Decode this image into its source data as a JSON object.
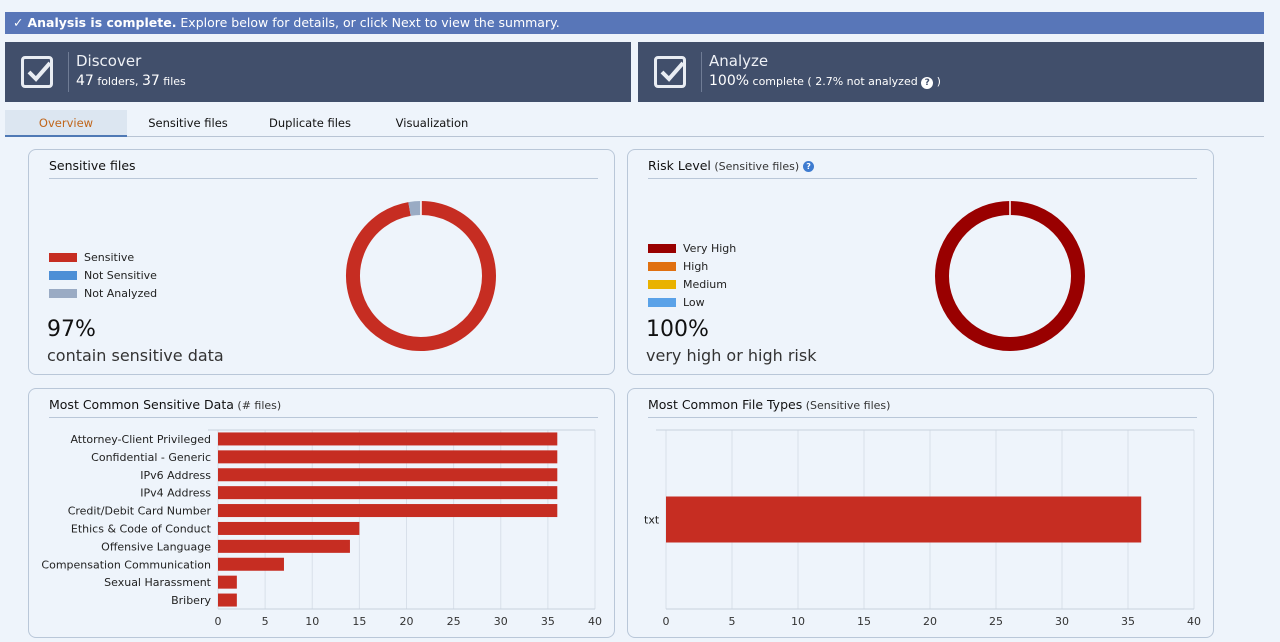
{
  "banner": {
    "check": "✓",
    "bold": "Analysis is complete.",
    "text": " Explore below for details, or click Next to view the summary."
  },
  "discover": {
    "title": "Discover",
    "folders": "47",
    "folders_label": " folders, ",
    "files": "37",
    "files_label": " files"
  },
  "analyze": {
    "title": "Analyze",
    "percent": "100%",
    "complete_label": " complete ",
    "not_analyzed": " ( 2.7% not analyzed ",
    "help": "?",
    "close_paren": " )"
  },
  "tabs": [
    {
      "label": "Overview",
      "active": true
    },
    {
      "label": "Sensitive files",
      "active": false
    },
    {
      "label": "Duplicate files",
      "active": false
    },
    {
      "label": "Visualization",
      "active": false
    }
  ],
  "sensitive_panel": {
    "title": "Sensitive files",
    "legend": [
      {
        "label": "Sensitive",
        "color": "#c62d22"
      },
      {
        "label": "Not Sensitive",
        "color": "#4d8fd6"
      },
      {
        "label": "Not Analyzed",
        "color": "#9aabc4"
      }
    ],
    "percent": "97%",
    "description": "contain sensitive data"
  },
  "risk_panel": {
    "title": "Risk Level",
    "subtitle": " (Sensitive files)",
    "help": "?",
    "legend": [
      {
        "label": "Very High",
        "color": "#990000"
      },
      {
        "label": "High",
        "color": "#e07010"
      },
      {
        "label": "Medium",
        "color": "#e9b200"
      },
      {
        "label": "Low",
        "color": "#5aa2e8"
      }
    ],
    "percent": "100%",
    "description": "very high or high risk"
  },
  "common_data_panel": {
    "title": "Most Common Sensitive Data",
    "subtitle": " (# files)"
  },
  "file_types_panel": {
    "title": "Most Common File Types",
    "subtitle": " (Sensitive files)"
  },
  "chart_data": [
    {
      "type": "pie",
      "title": "Sensitive files",
      "labels": [
        "Sensitive",
        "Not Sensitive",
        "Not Analyzed"
      ],
      "values": [
        97.3,
        0,
        2.7
      ],
      "colors": [
        "#c62d22",
        "#4d8fd6",
        "#9aabc4"
      ]
    },
    {
      "type": "pie",
      "title": "Risk Level",
      "labels": [
        "Very High",
        "High",
        "Medium",
        "Low"
      ],
      "values": [
        100,
        0,
        0,
        0
      ],
      "colors": [
        "#990000",
        "#e07010",
        "#e9b200",
        "#5aa2e8"
      ]
    },
    {
      "type": "bar",
      "orientation": "horizontal",
      "title": "Most Common Sensitive Data",
      "categories": [
        "Attorney-Client Privileged",
        "Confidential - Generic",
        "IPv6 Address",
        "IPv4 Address",
        "Credit/Debit Card Number",
        "Ethics & Code of Conduct",
        "Offensive Language",
        "Compensation Communication",
        "Sexual Harassment",
        "Bribery"
      ],
      "values": [
        36,
        36,
        36,
        36,
        36,
        15,
        14,
        7,
        2,
        2
      ],
      "xlim": [
        0,
        40
      ],
      "xticks": [
        0,
        5,
        10,
        15,
        20,
        25,
        30,
        35,
        40
      ],
      "color": "#c62d22",
      "grid": true
    },
    {
      "type": "bar",
      "orientation": "horizontal",
      "title": "Most Common File Types",
      "categories": [
        "txt"
      ],
      "values": [
        36
      ],
      "xlim": [
        0,
        40
      ],
      "xticks": [
        0,
        5,
        10,
        15,
        20,
        25,
        30,
        35,
        40
      ],
      "color": "#c62d22",
      "grid": true
    }
  ]
}
